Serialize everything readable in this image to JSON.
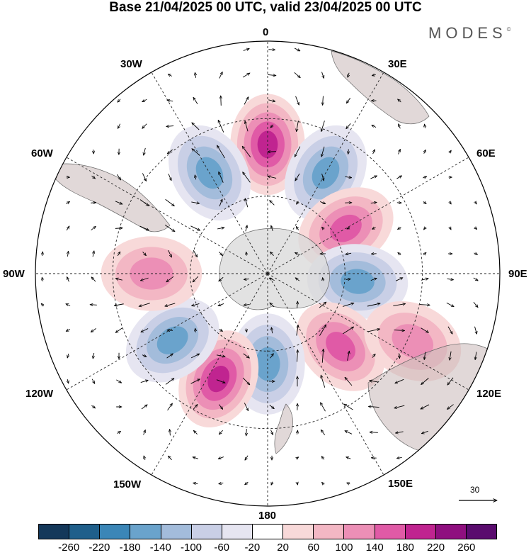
{
  "title": "Base 21/04/2025 00 UTC, valid 23/04/2025 00 UTC",
  "brand": "MODES",
  "brand_mark": "©",
  "longitude_labels": {
    "lon_0": "0",
    "lon_30e": "30E",
    "lon_60e": "60E",
    "lon_90e": "90E",
    "lon_120e": "120E",
    "lon_150e": "150E",
    "lon_180": "180",
    "lon_150w": "150W",
    "lon_120w": "120W",
    "lon_90w": "90W",
    "lon_60w": "60W",
    "lon_30w": "30W"
  },
  "reference_vector": {
    "value": "30"
  },
  "colorbar": {
    "colors": [
      "#14385a",
      "#1f5f8b",
      "#3b86b7",
      "#6aa3cc",
      "#a3bcdb",
      "#c9cfe6",
      "#e6e5f1",
      "#ffffff",
      "#f8d9d9",
      "#f3b7c4",
      "#ec8fb6",
      "#e05aa6",
      "#c02490",
      "#8f0f7f",
      "#5a0c6e"
    ],
    "labels": [
      "-260",
      "-220",
      "-180",
      "-140",
      "-100",
      "-60",
      "-20",
      "20",
      "60",
      "100",
      "140",
      "180",
      "220",
      "260"
    ]
  },
  "field_anomalies": [
    {
      "name": "positive-anomaly-0",
      "lon": 0,
      "lat": -40,
      "value": 230
    },
    {
      "name": "negative-anomaly-30w",
      "lon": -30,
      "lat": -45,
      "value": -170
    },
    {
      "name": "negative-anomaly-30e",
      "lon": 30,
      "lat": -45,
      "value": -175
    },
    {
      "name": "positive-anomaly-60e",
      "lon": 60,
      "lat": -55,
      "value": 180
    },
    {
      "name": "negative-anomaly-90e",
      "lon": 95,
      "lat": -55,
      "value": -185
    },
    {
      "name": "positive-anomaly-120e",
      "lon": 135,
      "lat": -50,
      "value": 185
    },
    {
      "name": "negative-anomaly-180",
      "lon": 180,
      "lat": -55,
      "value": -190
    },
    {
      "name": "positive-anomaly-150w",
      "lon": -155,
      "lat": -45,
      "value": 200
    },
    {
      "name": "negative-anomaly-120w",
      "lon": -125,
      "lat": -45,
      "value": -175
    },
    {
      "name": "positive-anomaly-90w",
      "lon": -90,
      "lat": -45,
      "value": 120
    },
    {
      "name": "positive-anomaly-120e-far",
      "lon": 115,
      "lat": -28,
      "value": 120
    }
  ]
}
